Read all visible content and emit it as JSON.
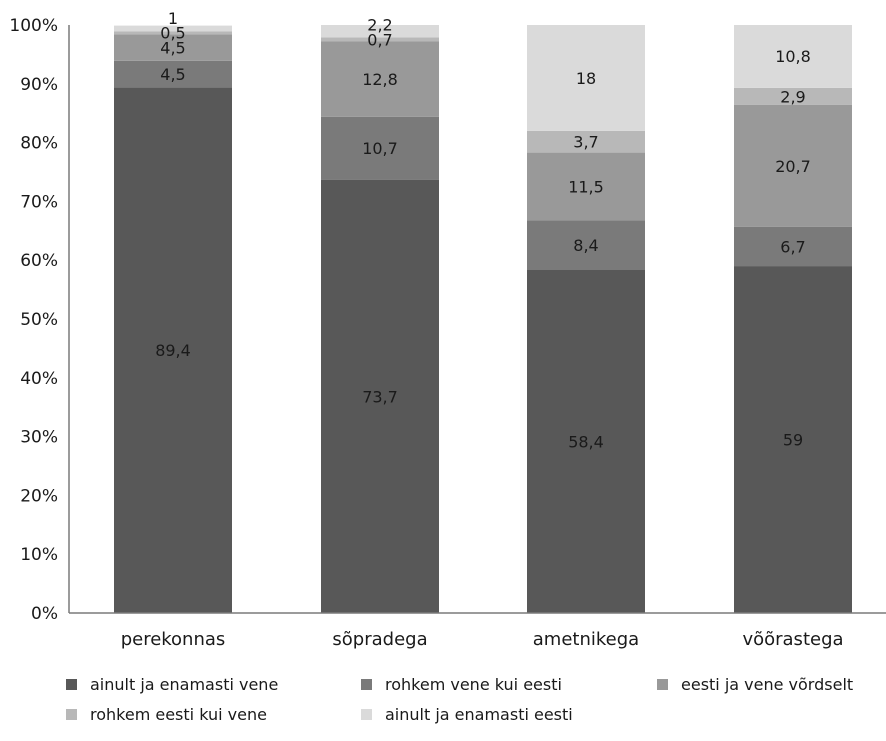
{
  "chart_data": {
    "type": "bar",
    "stacked": true,
    "percent": true,
    "title": "",
    "xlabel": "",
    "ylabel": "",
    "ylim": [
      0,
      100
    ],
    "y_ticks": [
      "0%",
      "10%",
      "20%",
      "30%",
      "40%",
      "50%",
      "60%",
      "70%",
      "80%",
      "90%",
      "100%"
    ],
    "categories": [
      "perekonnas",
      "sõpradega",
      "ametnikega",
      "võõrastega"
    ],
    "series": [
      {
        "name": "ainult ja enamasti vene",
        "color": "#585858",
        "values": [
          89.4,
          73.7,
          58.4,
          59
        ],
        "labels": [
          "89,4",
          "73,7",
          "58,4",
          "59"
        ]
      },
      {
        "name": "rohkem vene kui eesti",
        "color": "#7a7a7a",
        "values": [
          4.5,
          10.7,
          8.4,
          6.7
        ],
        "labels": [
          "4,5",
          "10,7",
          "8,4",
          "6,7"
        ]
      },
      {
        "name": "eesti ja vene võrdselt",
        "color": "#999999",
        "values": [
          4.5,
          12.8,
          11.5,
          20.7
        ],
        "labels": [
          "4,5",
          "12,8",
          "11,5",
          "20,7"
        ]
      },
      {
        "name": "rohkem eesti kui vene",
        "color": "#b8b8b8",
        "values": [
          0.5,
          0.7,
          3.7,
          2.9
        ],
        "labels": [
          "0,5",
          "0,7",
          "3,7",
          "2,9"
        ]
      },
      {
        "name": "ainult ja enamasti eesti",
        "color": "#dadada",
        "values": [
          1,
          2.2,
          18,
          10.8
        ],
        "labels": [
          "1",
          "2,2",
          "18",
          "10,8"
        ]
      }
    ],
    "grid": false,
    "legend_position": "bottom"
  }
}
